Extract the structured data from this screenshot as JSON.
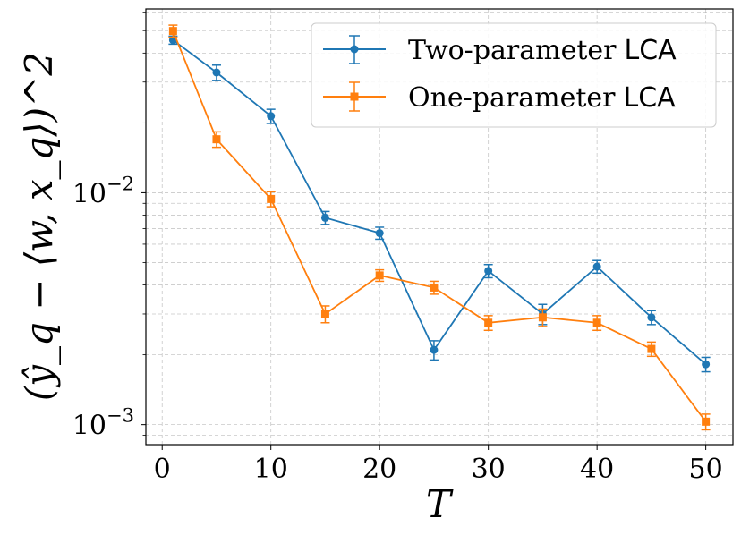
{
  "chart_data": {
    "type": "line",
    "scale": {
      "x": "linear",
      "y": "log"
    },
    "xlabel": "T",
    "ylabel": "(ŷ_q − ⟨w, x_q⟩)^2",
    "xlim": [
      -1.5,
      52.5
    ],
    "ylim": [
      0.00082,
      0.062
    ],
    "x_ticks": [
      0,
      10,
      20,
      30,
      40,
      50
    ],
    "x_tick_labels": [
      "0",
      "10",
      "20",
      "30",
      "40",
      "50"
    ],
    "y_ticks": [
      {
        "value": 0.01,
        "base": "10",
        "exponent": "−2"
      },
      {
        "value": 0.001,
        "base": "10",
        "exponent": "−3"
      }
    ],
    "grid": true,
    "legend_position": "top-right",
    "series": [
      {
        "name": "Two-parameter",
        "name_suffix": "LCA",
        "color": "#1f77b4",
        "marker": "circle",
        "x": [
          1,
          5,
          10,
          15,
          20,
          25,
          30,
          35,
          40,
          45,
          50
        ],
        "y": [
          0.0455,
          0.033,
          0.0214,
          0.0078,
          0.0067,
          0.0021,
          0.0046,
          0.003,
          0.0048,
          0.0029,
          0.00182
        ],
        "err": [
          0.0018,
          0.0025,
          0.0015,
          0.0005,
          0.0004,
          0.0002,
          0.0003,
          0.0003,
          0.0003,
          0.0002,
          0.00013
        ]
      },
      {
        "name": "One-parameter",
        "name_suffix": "LCA",
        "color": "#ff7f0e",
        "marker": "square",
        "x": [
          1,
          5,
          10,
          15,
          20,
          25,
          30,
          35,
          40,
          45,
          50
        ],
        "y": [
          0.0498,
          0.017,
          0.0094,
          0.003,
          0.0044,
          0.0039,
          0.00275,
          0.0029,
          0.00275,
          0.00212,
          0.00103
        ],
        "err": [
          0.003,
          0.0013,
          0.0007,
          0.00025,
          0.00025,
          0.00025,
          0.0002,
          0.00025,
          0.0002,
          0.00015,
          8e-05
        ]
      }
    ]
  }
}
